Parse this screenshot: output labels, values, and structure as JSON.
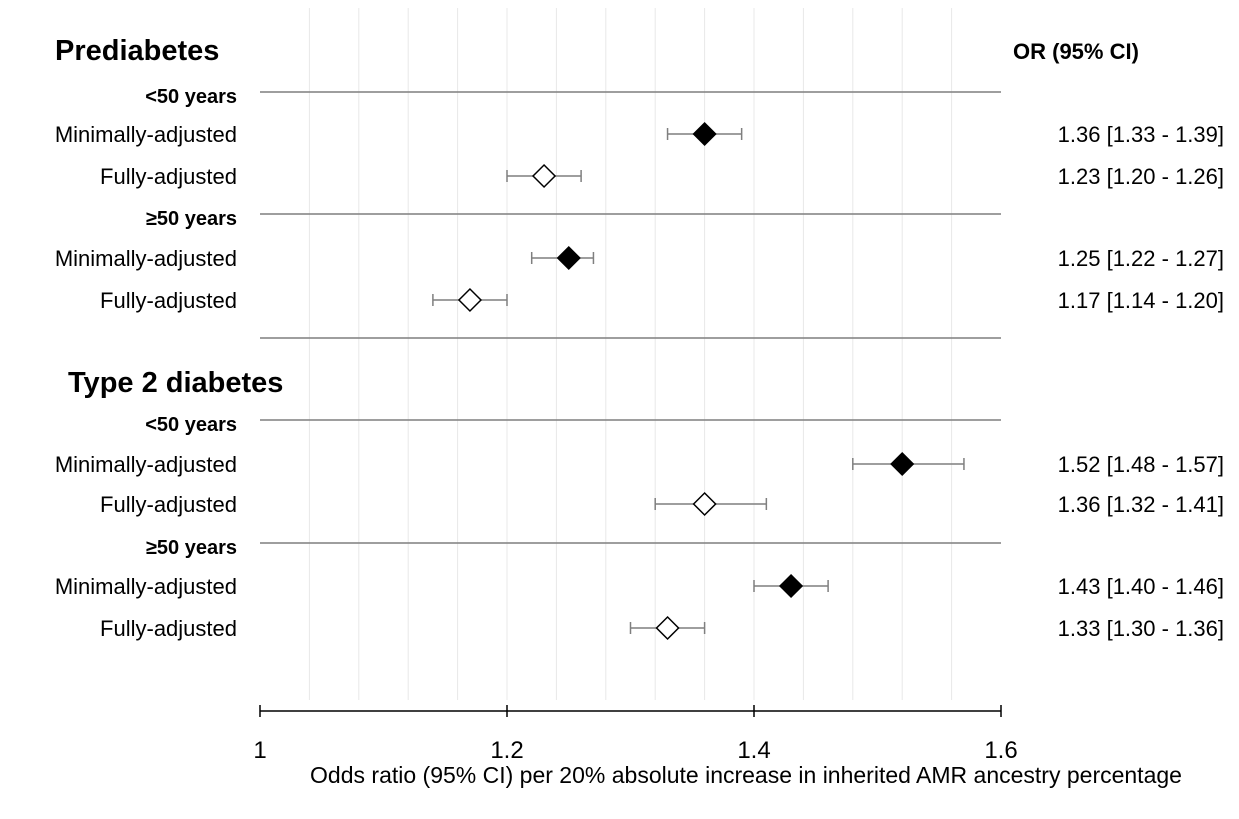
{
  "chart_data": {
    "type": "forest",
    "xlabel": "Odds ratio (95% CI) per 20% absolute increase in inherited AMR ancestry percentage",
    "xlim": [
      1,
      1.6
    ],
    "xticks": [
      "1",
      "1.2",
      "1.4",
      "1.6"
    ],
    "grid": true,
    "or_header": "OR (95% CI)",
    "legend": "none",
    "rows": [
      {
        "kind": "header",
        "label": "Prediabetes"
      },
      {
        "kind": "sub",
        "label": "<50 years"
      },
      {
        "kind": "est",
        "label": "Minimally-adjusted",
        "or": 1.36,
        "lo": 1.33,
        "hi": 1.39,
        "filled": true,
        "text": "1.36 [1.33 - 1.39]"
      },
      {
        "kind": "est",
        "label": "Fully-adjusted",
        "or": 1.23,
        "lo": 1.2,
        "hi": 1.26,
        "filled": false,
        "text": "1.23 [1.20 - 1.26]"
      },
      {
        "kind": "sub",
        "label": "≥50 years"
      },
      {
        "kind": "est",
        "label": "Minimally-adjusted",
        "or": 1.25,
        "lo": 1.22,
        "hi": 1.27,
        "filled": true,
        "text": "1.25 [1.22 - 1.27]"
      },
      {
        "kind": "est",
        "label": "Fully-adjusted",
        "or": 1.17,
        "lo": 1.14,
        "hi": 1.2,
        "filled": false,
        "text": "1.17 [1.14 - 1.20]"
      },
      {
        "kind": "sep"
      },
      {
        "kind": "header",
        "label": "Type 2 diabetes"
      },
      {
        "kind": "sub",
        "label": "<50 years"
      },
      {
        "kind": "est",
        "label": "Minimally-adjusted",
        "or": 1.52,
        "lo": 1.48,
        "hi": 1.57,
        "filled": true,
        "text": "1.52 [1.48 - 1.57]"
      },
      {
        "kind": "est",
        "label": "Fully-adjusted",
        "or": 1.36,
        "lo": 1.32,
        "hi": 1.41,
        "filled": false,
        "text": "1.36 [1.32 - 1.41]"
      },
      {
        "kind": "sub",
        "label": "≥50 years"
      },
      {
        "kind": "est",
        "label": "Minimally-adjusted",
        "or": 1.43,
        "lo": 1.4,
        "hi": 1.46,
        "filled": true,
        "text": "1.43 [1.40 - 1.46]"
      },
      {
        "kind": "est",
        "label": "Fully-adjusted",
        "or": 1.33,
        "lo": 1.3,
        "hi": 1.36,
        "filled": false,
        "text": "1.33 [1.30 - 1.36]"
      }
    ]
  }
}
